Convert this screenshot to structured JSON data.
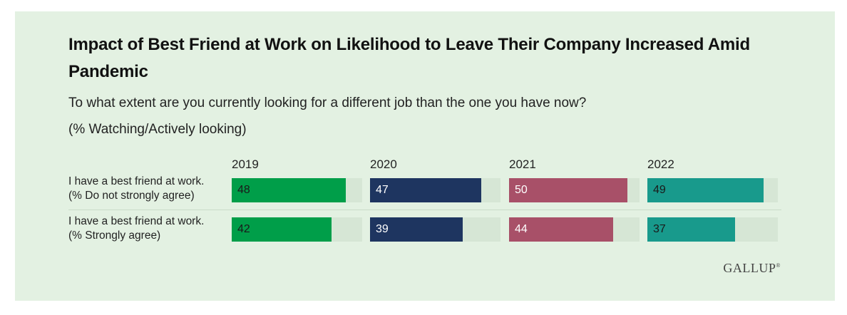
{
  "title": "Impact of Best Friend at Work on Likelihood to Leave Their Company Increased Amid Pandemic",
  "subtitle": "To what extent are you currently looking for a different job than the one you have now?",
  "note": "(% Watching/Actively looking)",
  "logo": "GALLUP",
  "logo_mark": "®",
  "chart_data": {
    "type": "bar",
    "orientation": "horizontal",
    "value_max": 55,
    "categories": [
      {
        "line1": "I have a best friend at work.",
        "line2": "(% Do not strongly agree)"
      },
      {
        "line1": "I have a best friend at work.",
        "line2": "(% Strongly agree)"
      }
    ],
    "series": [
      {
        "name": "2019",
        "color": "#009e49",
        "text_color": "#1a1a1a",
        "values": [
          48,
          42
        ]
      },
      {
        "name": "2020",
        "color": "#1e3560",
        "text_color": "#ffffff",
        "values": [
          47,
          39
        ]
      },
      {
        "name": "2021",
        "color": "#a85068",
        "text_color": "#ffffff",
        "values": [
          50,
          44
        ]
      },
      {
        "name": "2022",
        "color": "#189a8c",
        "text_color": "#1a1a1a",
        "values": [
          49,
          37
        ]
      }
    ]
  }
}
